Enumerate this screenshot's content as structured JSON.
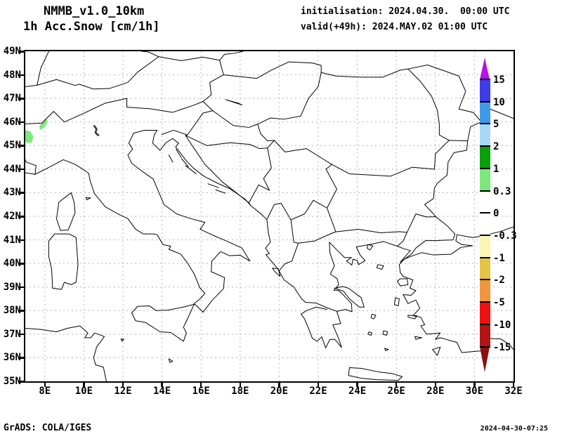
{
  "header": {
    "model": "NMMB_v1.0_10km",
    "field": "1h Acc.Snow [cm/1h]",
    "init_line": "initialisation: 2024.04.30.  00:00 UTC",
    "valid_line": "valid(+49h): 2024.MAY.02 01:00 UTC"
  },
  "footer": {
    "grads": "GrADS: COLA/IGES",
    "created": "2024-04-30-07:25"
  },
  "axes": {
    "lat_ticks": [
      {
        "label": "49N",
        "value": 49
      },
      {
        "label": "48N",
        "value": 48
      },
      {
        "label": "47N",
        "value": 47
      },
      {
        "label": "46N",
        "value": 46
      },
      {
        "label": "45N",
        "value": 45
      },
      {
        "label": "44N",
        "value": 44
      },
      {
        "label": "43N",
        "value": 43
      },
      {
        "label": "42N",
        "value": 42
      },
      {
        "label": "41N",
        "value": 41
      },
      {
        "label": "40N",
        "value": 40
      },
      {
        "label": "39N",
        "value": 39
      },
      {
        "label": "38N",
        "value": 38
      },
      {
        "label": "37N",
        "value": 37
      },
      {
        "label": "36N",
        "value": 36
      },
      {
        "label": "35N",
        "value": 35
      }
    ],
    "lon_ticks": [
      {
        "label": "8E",
        "value": 8
      },
      {
        "label": "10E",
        "value": 10
      },
      {
        "label": "12E",
        "value": 12
      },
      {
        "label": "14E",
        "value": 14
      },
      {
        "label": "16E",
        "value": 16
      },
      {
        "label": "18E",
        "value": 18
      },
      {
        "label": "20E",
        "value": 20
      },
      {
        "label": "22E",
        "value": 22
      },
      {
        "label": "24E",
        "value": 24
      },
      {
        "label": "26E",
        "value": 26
      },
      {
        "label": "28E",
        "value": 28
      },
      {
        "label": "30E",
        "value": 30
      },
      {
        "label": "32E",
        "value": 32
      }
    ],
    "lat_gridlines": [
      36,
      37,
      38,
      39,
      40,
      41,
      42,
      43,
      44,
      45,
      46,
      47,
      48
    ],
    "lon_gridlines": [
      8,
      10,
      12,
      14,
      16,
      18,
      20,
      22,
      24,
      26,
      28,
      30
    ]
  },
  "colorbar": {
    "boundary_labels": [
      "15",
      "10",
      "5",
      "2",
      "1",
      "0.3",
      "0",
      "-0.3",
      "-1",
      "-2",
      "-5",
      "-10",
      "-15"
    ],
    "segment_colors": [
      "#3c3ce8",
      "#3f9ae8",
      "#a6d8fa",
      "#0aa00a",
      "#7ce87c",
      "#ffffff",
      "#ffffff",
      "#faf5b0",
      "#e6c343",
      "#f0963c",
      "#f01010",
      "#b41414"
    ],
    "arrow_top_color": "#b414e6",
    "arrow_bottom_color": "#8c1010",
    "grid_color": "#b4b4b4"
  },
  "chart_data": {
    "type": "filled-contour-map",
    "variable": "1h Acc.Snow",
    "units": "cm/1h",
    "lon_range": [
      7,
      32
    ],
    "lat_range": [
      35,
      49
    ],
    "contour_levels": [
      -15,
      -10,
      -5,
      -2,
      -1,
      -0.3,
      0,
      0.3,
      1,
      2,
      5,
      10,
      15
    ],
    "snow_patches": [
      {
        "value_band": "0.3 to 1",
        "color": "#7ce87c",
        "polygon": [
          [
            7.78,
            45.7
          ],
          [
            7.95,
            45.8
          ],
          [
            8.1,
            45.98
          ],
          [
            8.08,
            46.06
          ],
          [
            7.92,
            45.98
          ],
          [
            7.76,
            45.82
          ]
        ]
      },
      {
        "value_band": "0.3 to 1",
        "color": "#7ce87c",
        "polygon": [
          [
            7.0,
            45.62
          ],
          [
            7.22,
            45.58
          ],
          [
            7.38,
            45.38
          ],
          [
            7.3,
            45.16
          ],
          [
            7.1,
            45.14
          ],
          [
            7.0,
            45.25
          ]
        ]
      }
    ]
  }
}
